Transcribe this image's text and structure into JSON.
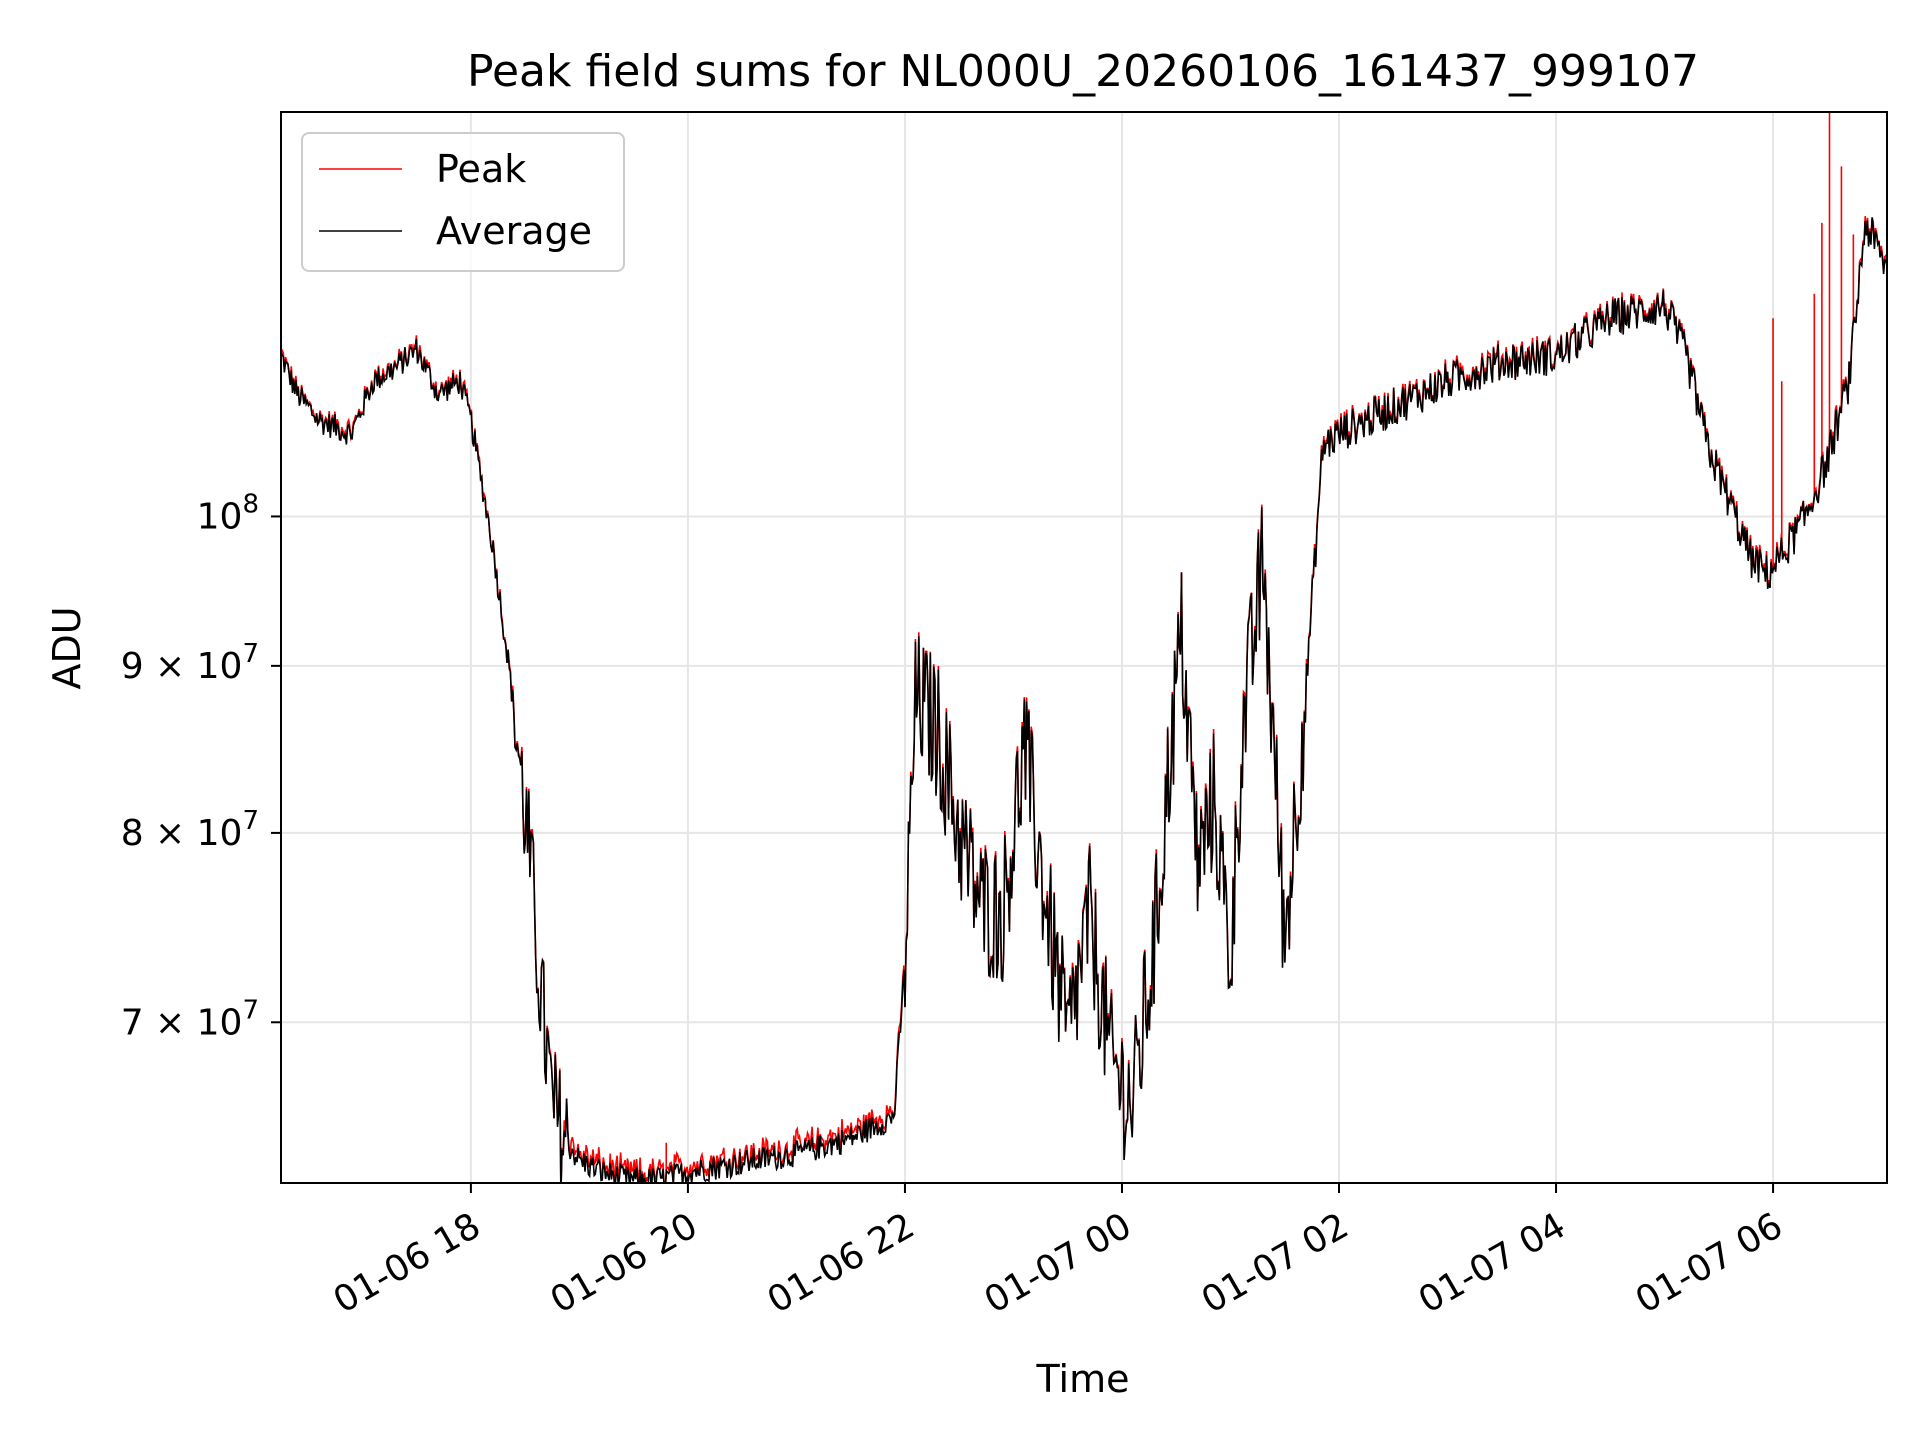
{
  "colors": {
    "peak": "#ff0000",
    "average": "#000000",
    "grid": "#e6e6e6"
  },
  "chart_data": {
    "type": "line",
    "title": "Peak field sums for NL000U_20260106_161437_999107",
    "xlabel": "Time",
    "ylabel": "ADU",
    "y_scale": "log",
    "xlim_hours": [
      16.25,
      31.05
    ],
    "ylim": [
      62500000,
      133000000
    ],
    "grid": true,
    "legend_position": "top-left",
    "x_ticks": [
      {
        "label": "01-06 18",
        "hour": 18
      },
      {
        "label": "01-06 20",
        "hour": 20
      },
      {
        "label": "01-06 22",
        "hour": 22
      },
      {
        "label": "01-07 00",
        "hour": 24
      },
      {
        "label": "01-07 02",
        "hour": 26
      },
      {
        "label": "01-07 04",
        "hour": 28
      },
      {
        "label": "01-07 06",
        "hour": 30
      }
    ],
    "y_ticks": [
      {
        "value": 70000000,
        "mantissa": "7",
        "times": "×",
        "base": "10",
        "exp": "7"
      },
      {
        "value": 80000000,
        "mantissa": "8",
        "times": "×",
        "base": "10",
        "exp": "7"
      },
      {
        "value": 90000000,
        "mantissa": "9",
        "times": "×",
        "base": "10",
        "exp": "7"
      },
      {
        "value": 100000000,
        "mantissa": "",
        "times": "",
        "base": "10",
        "exp": "8"
      }
    ],
    "series": [
      {
        "name": "Peak",
        "color": "#ff0000",
        "spikes": [
          {
            "hour": 30.52,
            "value": 133000000
          },
          {
            "hour": 30.63,
            "value": 128000000
          },
          {
            "hour": 30.45,
            "value": 123000000
          },
          {
            "hour": 30.74,
            "value": 122000000
          },
          {
            "hour": 30.0,
            "value": 115000000
          },
          {
            "hour": 30.38,
            "value": 117000000
          },
          {
            "hour": 30.08,
            "value": 110000000
          },
          {
            "hour": 19.8,
            "value": 64300000
          },
          {
            "hour": 20.8,
            "value": 64000000
          }
        ]
      },
      {
        "name": "Average",
        "color": "#000000",
        "x_hours": [
          16.25,
          16.4,
          16.6,
          16.9,
          17.1,
          17.3,
          17.5,
          17.7,
          17.9,
          18.0,
          18.2,
          18.35,
          18.45,
          18.55,
          18.65,
          18.75,
          18.85,
          19.0,
          19.2,
          19.4,
          19.6,
          19.8,
          20.0,
          20.5,
          21.0,
          21.5,
          21.9,
          22.0,
          22.1,
          22.3,
          22.5,
          22.7,
          22.9,
          23.1,
          23.3,
          23.5,
          23.7,
          23.9,
          24.1,
          24.3,
          24.45,
          24.55,
          24.7,
          24.85,
          25.0,
          25.1,
          25.3,
          25.5,
          25.7,
          25.85,
          26.0,
          26.5,
          27.0,
          27.5,
          28.0,
          28.5,
          29.0,
          29.2,
          29.4,
          29.6,
          29.8,
          29.95,
          30.1,
          30.3,
          30.5,
          30.7,
          30.85,
          31.05
        ],
        "values": [
          112000000,
          109000000,
          107000000,
          106000000,
          110000000,
          111000000,
          112500000,
          109000000,
          110000000,
          107000000,
          98000000,
          90000000,
          84000000,
          78000000,
          71000000,
          66000000,
          64500000,
          63500000,
          63000000,
          62700000,
          62600000,
          62700000,
          63000000,
          63400000,
          63800000,
          64500000,
          65500000,
          73000000,
          88000000,
          86000000,
          80000000,
          76000000,
          75500000,
          85000000,
          76000000,
          69000000,
          75500000,
          68000000,
          66000000,
          74000000,
          85000000,
          92000000,
          78000000,
          82000000,
          73000000,
          85000000,
          97000000,
          74000000,
          89000000,
          105000000,
          106000000,
          108000000,
          110000000,
          111500000,
          112000000,
          115000000,
          116000000,
          112000000,
          105000000,
          101000000,
          97000000,
          96000000,
          97500000,
          100000000,
          104000000,
          110000000,
          123000000,
          119000000
        ]
      }
    ]
  }
}
